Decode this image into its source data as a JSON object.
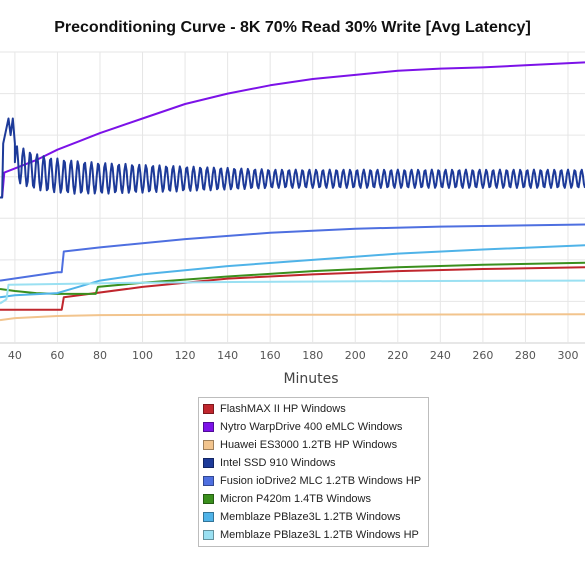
{
  "chart_data": {
    "type": "line",
    "title": "Preconditioning Curve - 8K 70% Read 30% Write [Avg Latency]",
    "xlabel": "Minutes",
    "ylabel": "",
    "xlim": [
      33,
      308
    ],
    "ylim": [
      0,
      70
    ],
    "x_ticks": [
      40,
      60,
      80,
      100,
      120,
      140,
      160,
      180,
      200,
      220,
      240,
      260,
      280,
      300
    ],
    "grid": true,
    "legend_position": "bottom",
    "series": [
      {
        "name": "FlashMAX II HP Windows",
        "color": "#c0262d",
        "points": [
          [
            33,
            8
          ],
          [
            62,
            8
          ],
          [
            63,
            11
          ],
          [
            100,
            13.5
          ],
          [
            140,
            15.5
          ],
          [
            180,
            16.5
          ],
          [
            220,
            17.3
          ],
          [
            260,
            17.8
          ],
          [
            308,
            18.2
          ]
        ]
      },
      {
        "name": "Nytro WarpDrive 400 eMLC Windows",
        "color": "#7c12e8",
        "points": [
          [
            33,
            35
          ],
          [
            34,
            35
          ],
          [
            35,
            41
          ],
          [
            40,
            42
          ],
          [
            50,
            44
          ],
          [
            60,
            46.5
          ],
          [
            70,
            48.5
          ],
          [
            80,
            50.5
          ],
          [
            100,
            54
          ],
          [
            120,
            57.5
          ],
          [
            140,
            60
          ],
          [
            160,
            62
          ],
          [
            180,
            63.5
          ],
          [
            200,
            64.5
          ],
          [
            220,
            65.5
          ],
          [
            240,
            66
          ],
          [
            260,
            66.3
          ],
          [
            280,
            66.8
          ],
          [
            308,
            67.5
          ]
        ]
      },
      {
        "name": "Huawei ES3000 1.2TB HP Windows",
        "color": "#f2c48d",
        "points": [
          [
            33,
            5.5
          ],
          [
            40,
            6
          ],
          [
            60,
            6.5
          ],
          [
            80,
            6.7
          ],
          [
            120,
            6.8
          ],
          [
            200,
            6.8
          ],
          [
            308,
            6.9
          ]
        ]
      },
      {
        "name": "Intel SSD 910 Windows",
        "color": "#1d3a99",
        "points": [
          [
            33,
            35
          ],
          [
            34,
            35
          ],
          [
            34.5,
            48
          ],
          [
            37,
            54
          ],
          [
            38,
            50
          ],
          [
            39,
            54
          ],
          [
            40,
            48
          ]
        ]
      },
      {
        "name": "Fusion ioDrive2 MLC 1.2TB Windows HP",
        "color": "#4e6fe0",
        "points": [
          [
            33,
            15
          ],
          [
            60,
            17
          ],
          [
            62,
            17
          ],
          [
            63,
            22
          ],
          [
            80,
            23
          ],
          [
            120,
            25
          ],
          [
            160,
            26.5
          ],
          [
            200,
            27.5
          ],
          [
            240,
            28
          ],
          [
            308,
            28.5
          ]
        ]
      },
      {
        "name": "Micron P420m 1.4TB Windows",
        "color": "#3a8f1d",
        "points": [
          [
            33,
            13
          ],
          [
            40,
            12.5
          ],
          [
            50,
            12
          ],
          [
            60,
            11.8
          ],
          [
            70,
            11.8
          ],
          [
            78,
            11.8
          ],
          [
            79,
            13.5
          ],
          [
            100,
            14.5
          ],
          [
            140,
            16
          ],
          [
            180,
            17.3
          ],
          [
            220,
            18.2
          ],
          [
            260,
            18.8
          ],
          [
            308,
            19.3
          ]
        ]
      },
      {
        "name": "Memblaze PBlaze3L 1.2TB Windows",
        "color": "#4fb3e8",
        "points": [
          [
            33,
            11
          ],
          [
            40,
            11.5
          ],
          [
            60,
            12
          ],
          [
            80,
            15
          ],
          [
            100,
            16.5
          ],
          [
            140,
            18.5
          ],
          [
            180,
            20
          ],
          [
            220,
            21.5
          ],
          [
            260,
            22.5
          ],
          [
            308,
            23.5
          ]
        ]
      },
      {
        "name": "Memblaze PBlaze3L 1.2TB Windows HP",
        "color": "#9ae0f2",
        "points": [
          [
            33,
            9.5
          ],
          [
            36,
            10.5
          ],
          [
            37,
            14
          ],
          [
            60,
            14.2
          ],
          [
            100,
            14.5
          ],
          [
            150,
            14.7
          ],
          [
            220,
            14.9
          ],
          [
            308,
            15
          ]
        ]
      }
    ],
    "intel_oscillation": {
      "x_start": 40,
      "x_end": 308,
      "baseline": 39.5,
      "amplitude_start": 4.5,
      "amplitude_end": 2.2,
      "period": 3.2
    }
  }
}
